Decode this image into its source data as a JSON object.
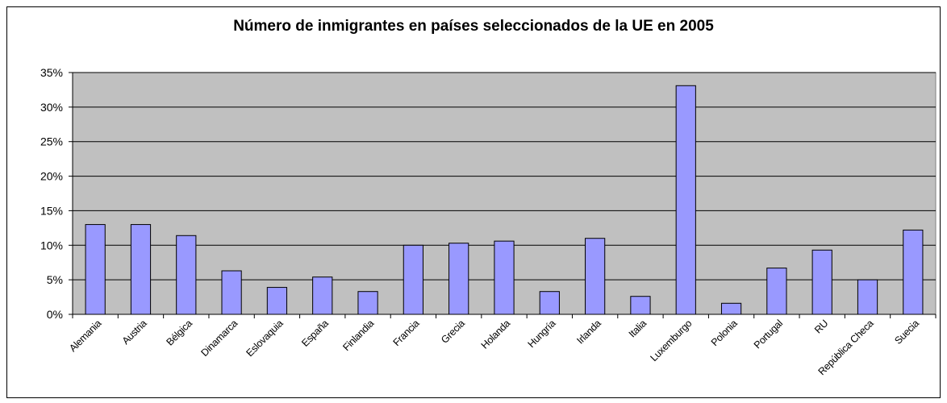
{
  "chart_data": {
    "type": "bar",
    "title": "Número de inmigrantes en países seleccionados de la UE en 2005",
    "xlabel": "",
    "ylabel": "",
    "categories": [
      "Alemania",
      "Austria",
      "Bélgica",
      "Dinamarca",
      "Eslovaquia",
      "España",
      "Finlandia",
      "Francia",
      "Grecia",
      "Holanda",
      "Hungría",
      "Irlanda",
      "Italia",
      "Luxemburgo",
      "Polonia",
      "Portugal",
      "RU",
      "República Checa",
      "Suecia"
    ],
    "values": [
      13.0,
      13.0,
      11.4,
      6.3,
      3.9,
      5.4,
      3.3,
      10.0,
      10.3,
      10.6,
      3.3,
      11.0,
      2.6,
      33.1,
      1.6,
      6.7,
      9.3,
      5.0,
      12.2
    ],
    "ylim": [
      0,
      35
    ],
    "yticks": [
      "0%",
      "5%",
      "10%",
      "15%",
      "20%",
      "25%",
      "30%",
      "35%"
    ],
    "ytick_values": [
      0,
      5,
      10,
      15,
      20,
      25,
      30,
      35
    ],
    "grid": true,
    "legend": "none",
    "plot_background": "#c0c0c0",
    "bar_color": "#9999ff",
    "bar_border": "#000000"
  }
}
